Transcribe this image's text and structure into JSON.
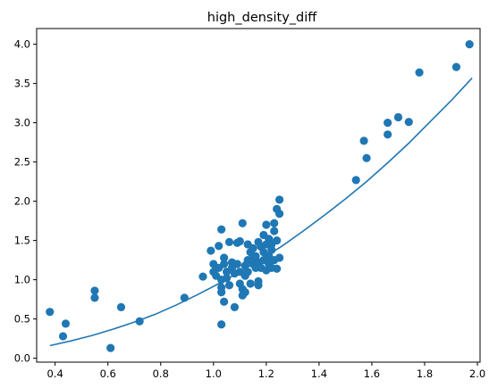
{
  "chart_data": {
    "type": "scatter",
    "title": "high_density_diff",
    "xlabel": "",
    "ylabel": "",
    "xlim": [
      0.33,
      2.01
    ],
    "ylim": [
      -0.05,
      4.2
    ],
    "grid": false,
    "x_ticks": [
      0.4,
      0.6,
      0.8,
      1.0,
      1.2,
      1.4,
      1.6,
      1.8,
      2.0
    ],
    "x_tick_labels": [
      "0.4",
      "0.6",
      "0.8",
      "1.0",
      "1.2",
      "1.4",
      "1.6",
      "1.8",
      "2.0"
    ],
    "y_ticks": [
      0.0,
      0.5,
      1.0,
      1.5,
      2.0,
      2.5,
      3.0,
      3.5,
      4.0
    ],
    "y_tick_labels": [
      "0.0",
      "0.5",
      "1.0",
      "1.5",
      "2.0",
      "2.5",
      "3.0",
      "3.5",
      "4.0"
    ],
    "series": [
      {
        "name": "data",
        "kind": "scatter",
        "color": "#1f77b4",
        "points": [
          [
            0.38,
            0.59
          ],
          [
            0.43,
            0.28
          ],
          [
            0.44,
            0.44
          ],
          [
            0.55,
            0.86
          ],
          [
            0.55,
            0.77
          ],
          [
            0.61,
            0.13
          ],
          [
            0.65,
            0.65
          ],
          [
            0.72,
            0.47
          ],
          [
            0.89,
            0.77
          ],
          [
            0.96,
            1.04
          ],
          [
            0.99,
            1.37
          ],
          [
            1.0,
            1.2
          ],
          [
            1.0,
            1.1
          ],
          [
            1.01,
            1.05
          ],
          [
            1.02,
            1.43
          ],
          [
            1.02,
            1.15
          ],
          [
            1.03,
            0.84
          ],
          [
            1.03,
            0.9
          ],
          [
            1.03,
            1.0
          ],
          [
            1.03,
            1.64
          ],
          [
            1.03,
            0.43
          ],
          [
            1.04,
            0.72
          ],
          [
            1.04,
            1.28
          ],
          [
            1.04,
            1.2
          ],
          [
            1.05,
            1.1
          ],
          [
            1.05,
            1.02
          ],
          [
            1.06,
            1.48
          ],
          [
            1.06,
            0.93
          ],
          [
            1.07,
            1.22
          ],
          [
            1.07,
            1.15
          ],
          [
            1.08,
            1.08
          ],
          [
            1.08,
            0.65
          ],
          [
            1.09,
            1.47
          ],
          [
            1.09,
            1.2
          ],
          [
            1.1,
            0.95
          ],
          [
            1.1,
            1.1
          ],
          [
            1.1,
            1.49
          ],
          [
            1.11,
            0.8
          ],
          [
            1.11,
            0.88
          ],
          [
            1.11,
            1.72
          ],
          [
            1.12,
            1.05
          ],
          [
            1.12,
            1.18
          ],
          [
            1.12,
            0.84
          ],
          [
            1.13,
            1.45
          ],
          [
            1.13,
            1.25
          ],
          [
            1.13,
            1.1
          ],
          [
            1.14,
            0.95
          ],
          [
            1.14,
            1.35
          ],
          [
            1.15,
            1.2
          ],
          [
            1.15,
            1.4
          ],
          [
            1.15,
            1.28
          ],
          [
            1.16,
            1.15
          ],
          [
            1.16,
            1.3
          ],
          [
            1.17,
            0.93
          ],
          [
            1.17,
            1.48
          ],
          [
            1.17,
            0.98
          ],
          [
            1.17,
            1.22
          ],
          [
            1.18,
            1.42
          ],
          [
            1.18,
            1.15
          ],
          [
            1.19,
            1.57
          ],
          [
            1.19,
            1.35
          ],
          [
            1.19,
            1.25
          ],
          [
            1.2,
            1.45
          ],
          [
            1.2,
            1.12
          ],
          [
            1.2,
            1.7
          ],
          [
            1.21,
            1.3
          ],
          [
            1.21,
            1.2
          ],
          [
            1.21,
            1.52
          ],
          [
            1.22,
            1.45
          ],
          [
            1.22,
            1.38
          ],
          [
            1.22,
            1.15
          ],
          [
            1.23,
            1.72
          ],
          [
            1.23,
            1.25
          ],
          [
            1.23,
            1.62
          ],
          [
            1.24,
            1.9
          ],
          [
            1.24,
            1.14
          ],
          [
            1.24,
            1.5
          ],
          [
            1.25,
            2.02
          ],
          [
            1.25,
            1.84
          ],
          [
            1.25,
            1.28
          ],
          [
            1.54,
            2.27
          ],
          [
            1.57,
            2.77
          ],
          [
            1.58,
            2.55
          ],
          [
            1.66,
            2.85
          ],
          [
            1.66,
            3.0
          ],
          [
            1.7,
            3.07
          ],
          [
            1.74,
            3.01
          ],
          [
            1.78,
            3.64
          ],
          [
            1.92,
            3.71
          ],
          [
            1.97,
            4.0
          ]
        ]
      },
      {
        "name": "fit",
        "kind": "line",
        "color": "#1f77b4",
        "x": [
          0.38,
          0.46,
          0.54,
          0.62,
          0.7,
          0.78,
          0.86,
          0.94,
          1.02,
          1.1,
          1.18,
          1.26,
          1.34,
          1.42,
          1.5,
          1.58,
          1.66,
          1.74,
          1.82,
          1.9,
          1.98
        ],
        "y": [
          0.16,
          0.22,
          0.29,
          0.37,
          0.46,
          0.56,
          0.68,
          0.81,
          0.95,
          1.1,
          1.26,
          1.43,
          1.62,
          1.82,
          2.03,
          2.25,
          2.49,
          2.74,
          3.01,
          3.28,
          3.57
        ]
      }
    ]
  }
}
